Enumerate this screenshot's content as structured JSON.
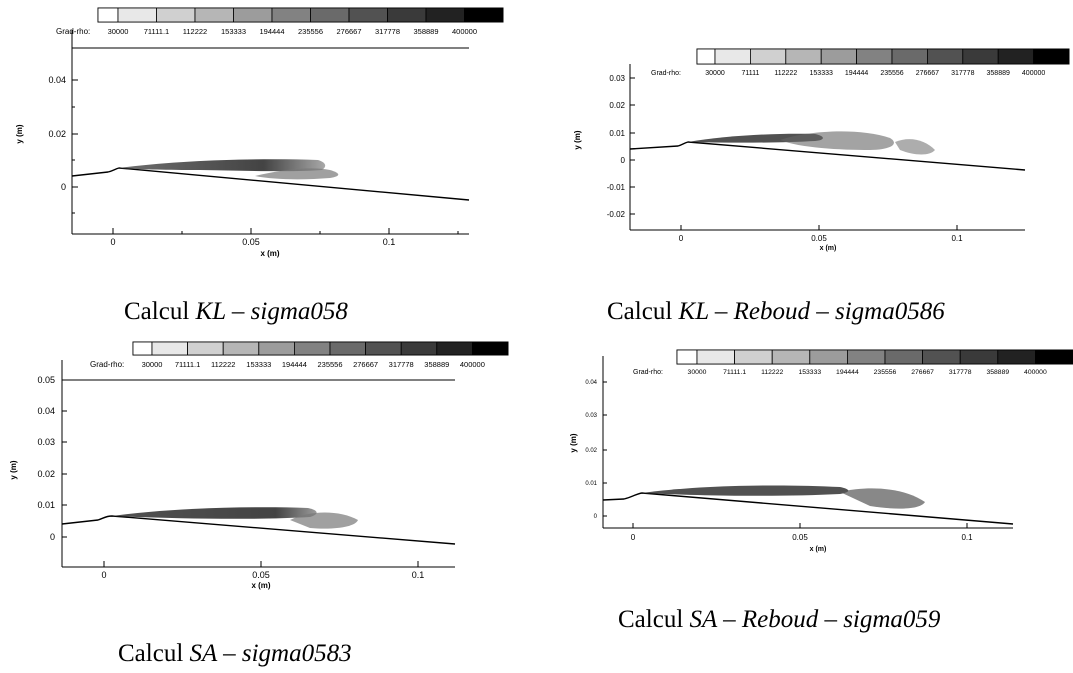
{
  "legend": {
    "label": "Grad-rho:",
    "levels_a": [
      "30000",
      "71111.1",
      "112222",
      "153333",
      "194444",
      "235556",
      "276667",
      "317778",
      "358889",
      "400000"
    ],
    "levels_b": [
      "30000",
      "71111",
      "112222",
      "153333",
      "194444",
      "235556",
      "276667",
      "317778",
      "358889",
      "400000"
    ],
    "swatch_colors": [
      "#ffffff",
      "#e8e8e8",
      "#d0d0d0",
      "#b6b6b6",
      "#9c9c9c",
      "#828282",
      "#6a6a6a",
      "#525252",
      "#3a3a3a",
      "#222222",
      "#000000"
    ]
  },
  "panels": [
    {
      "id": "kl",
      "caption_prefix": "Calcul",
      "caption_math": "KL – sigma058",
      "xlabel": "x (m)",
      "ylabel": "y (m)",
      "xticks": [
        "0",
        "0.05",
        "0.1"
      ],
      "yticks": [
        "0",
        "0.02",
        "0.04"
      ]
    },
    {
      "id": "kl-reboud",
      "caption_prefix": "Calcul",
      "caption_math": "KL – Reboud – sigma0586",
      "xlabel": "x (m)",
      "ylabel": "y (m)",
      "xticks": [
        "0",
        "0.05",
        "0.1"
      ],
      "yticks": [
        "-0.02",
        "-0.01",
        "0",
        "0.01",
        "0.02",
        "0.03"
      ]
    },
    {
      "id": "sa",
      "caption_prefix": "Calcul",
      "caption_math": "SA – sigma0583",
      "xlabel": "x (m)",
      "ylabel": "y (m)",
      "xticks": [
        "0",
        "0.05",
        "0.1"
      ],
      "yticks": [
        "0",
        "0.01",
        "0.02",
        "0.03",
        "0.04",
        "0.05"
      ]
    },
    {
      "id": "sa-reboud",
      "caption_prefix": "Calcul",
      "caption_math": "SA – Reboud – sigma059",
      "xlabel": "x (m)",
      "ylabel": "y (m)",
      "xticks": [
        "0",
        "0.05",
        "0.1"
      ],
      "yticks": [
        "0",
        "0.01",
        "0.02",
        "0.03",
        "0.04"
      ]
    }
  ]
}
